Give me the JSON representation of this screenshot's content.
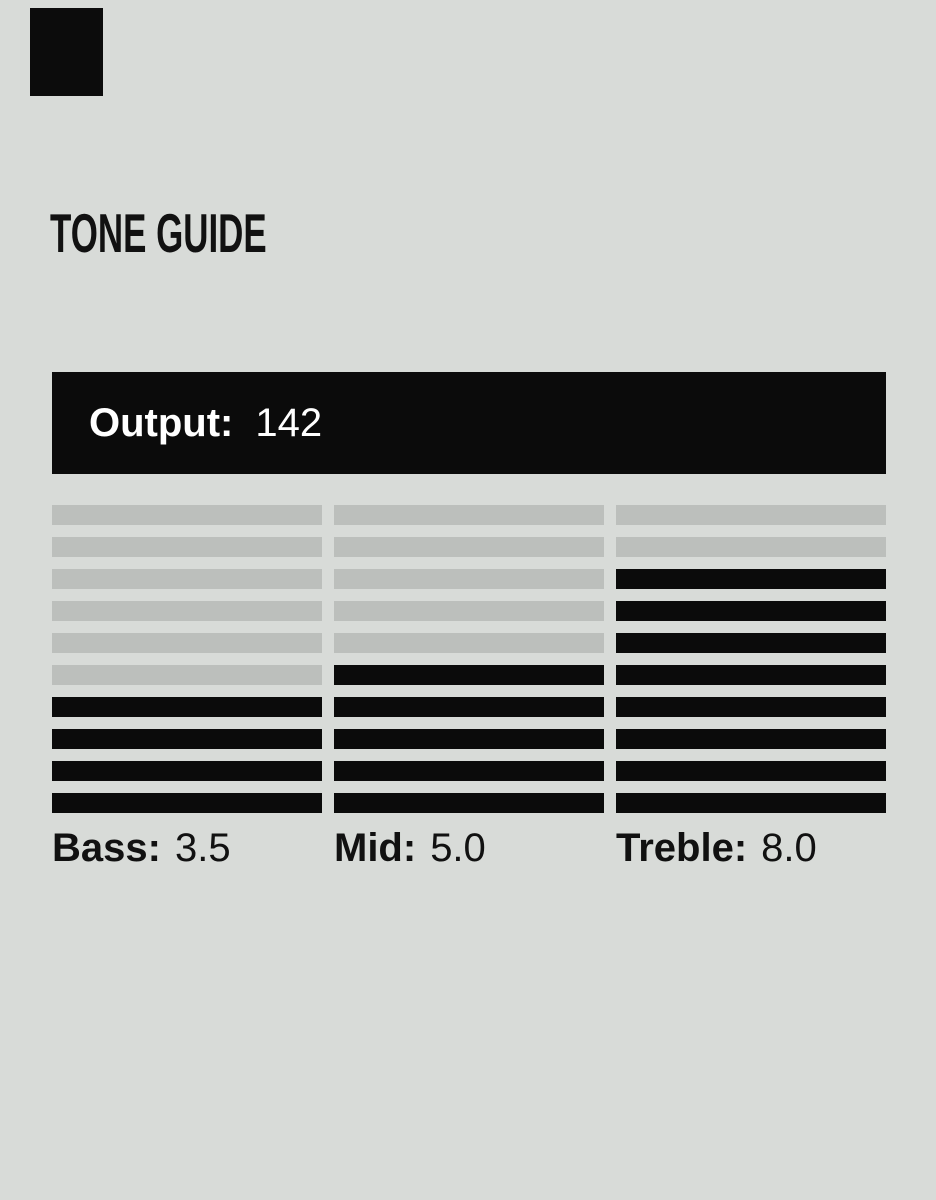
{
  "header": {
    "title": "TONE GUIDE"
  },
  "output_bar": {
    "label": "Output:",
    "value": "142"
  },
  "meters": [
    {
      "id": "bass",
      "label": "Bass:",
      "value": "3.5",
      "segments_total": 10,
      "segments_filled": 4
    },
    {
      "id": "mid",
      "label": "Mid:",
      "value": "5.0",
      "segments_total": 10,
      "segments_filled": 5
    },
    {
      "id": "treble",
      "label": "Treble:",
      "value": "8.0",
      "segments_total": 10,
      "segments_filled": 8
    }
  ],
  "chart_data": {
    "type": "bar",
    "title": "TONE GUIDE",
    "categories": [
      "Bass",
      "Mid",
      "Treble"
    ],
    "values": [
      3.5,
      5.0,
      8.0
    ],
    "value_labels": [
      "3.5",
      "5.0",
      "8.0"
    ],
    "scale": {
      "min": 0,
      "max": 10,
      "segments_per_meter": 10
    },
    "filled_segments": [
      4,
      5,
      8
    ],
    "fill_direction": "bottom-up",
    "annotations": {
      "output_label": "Output:",
      "output_value": 142
    },
    "legend": "none",
    "grid": false
  },
  "colors": {
    "background": "#d8dbd8",
    "inactive_segment": "#bcbfbc",
    "active_segment": "#0b0b0b",
    "output_bar_background": "#0b0b0b",
    "output_text": "#ffffff",
    "text": "#111111",
    "corner_square": "#0c0c0c"
  }
}
